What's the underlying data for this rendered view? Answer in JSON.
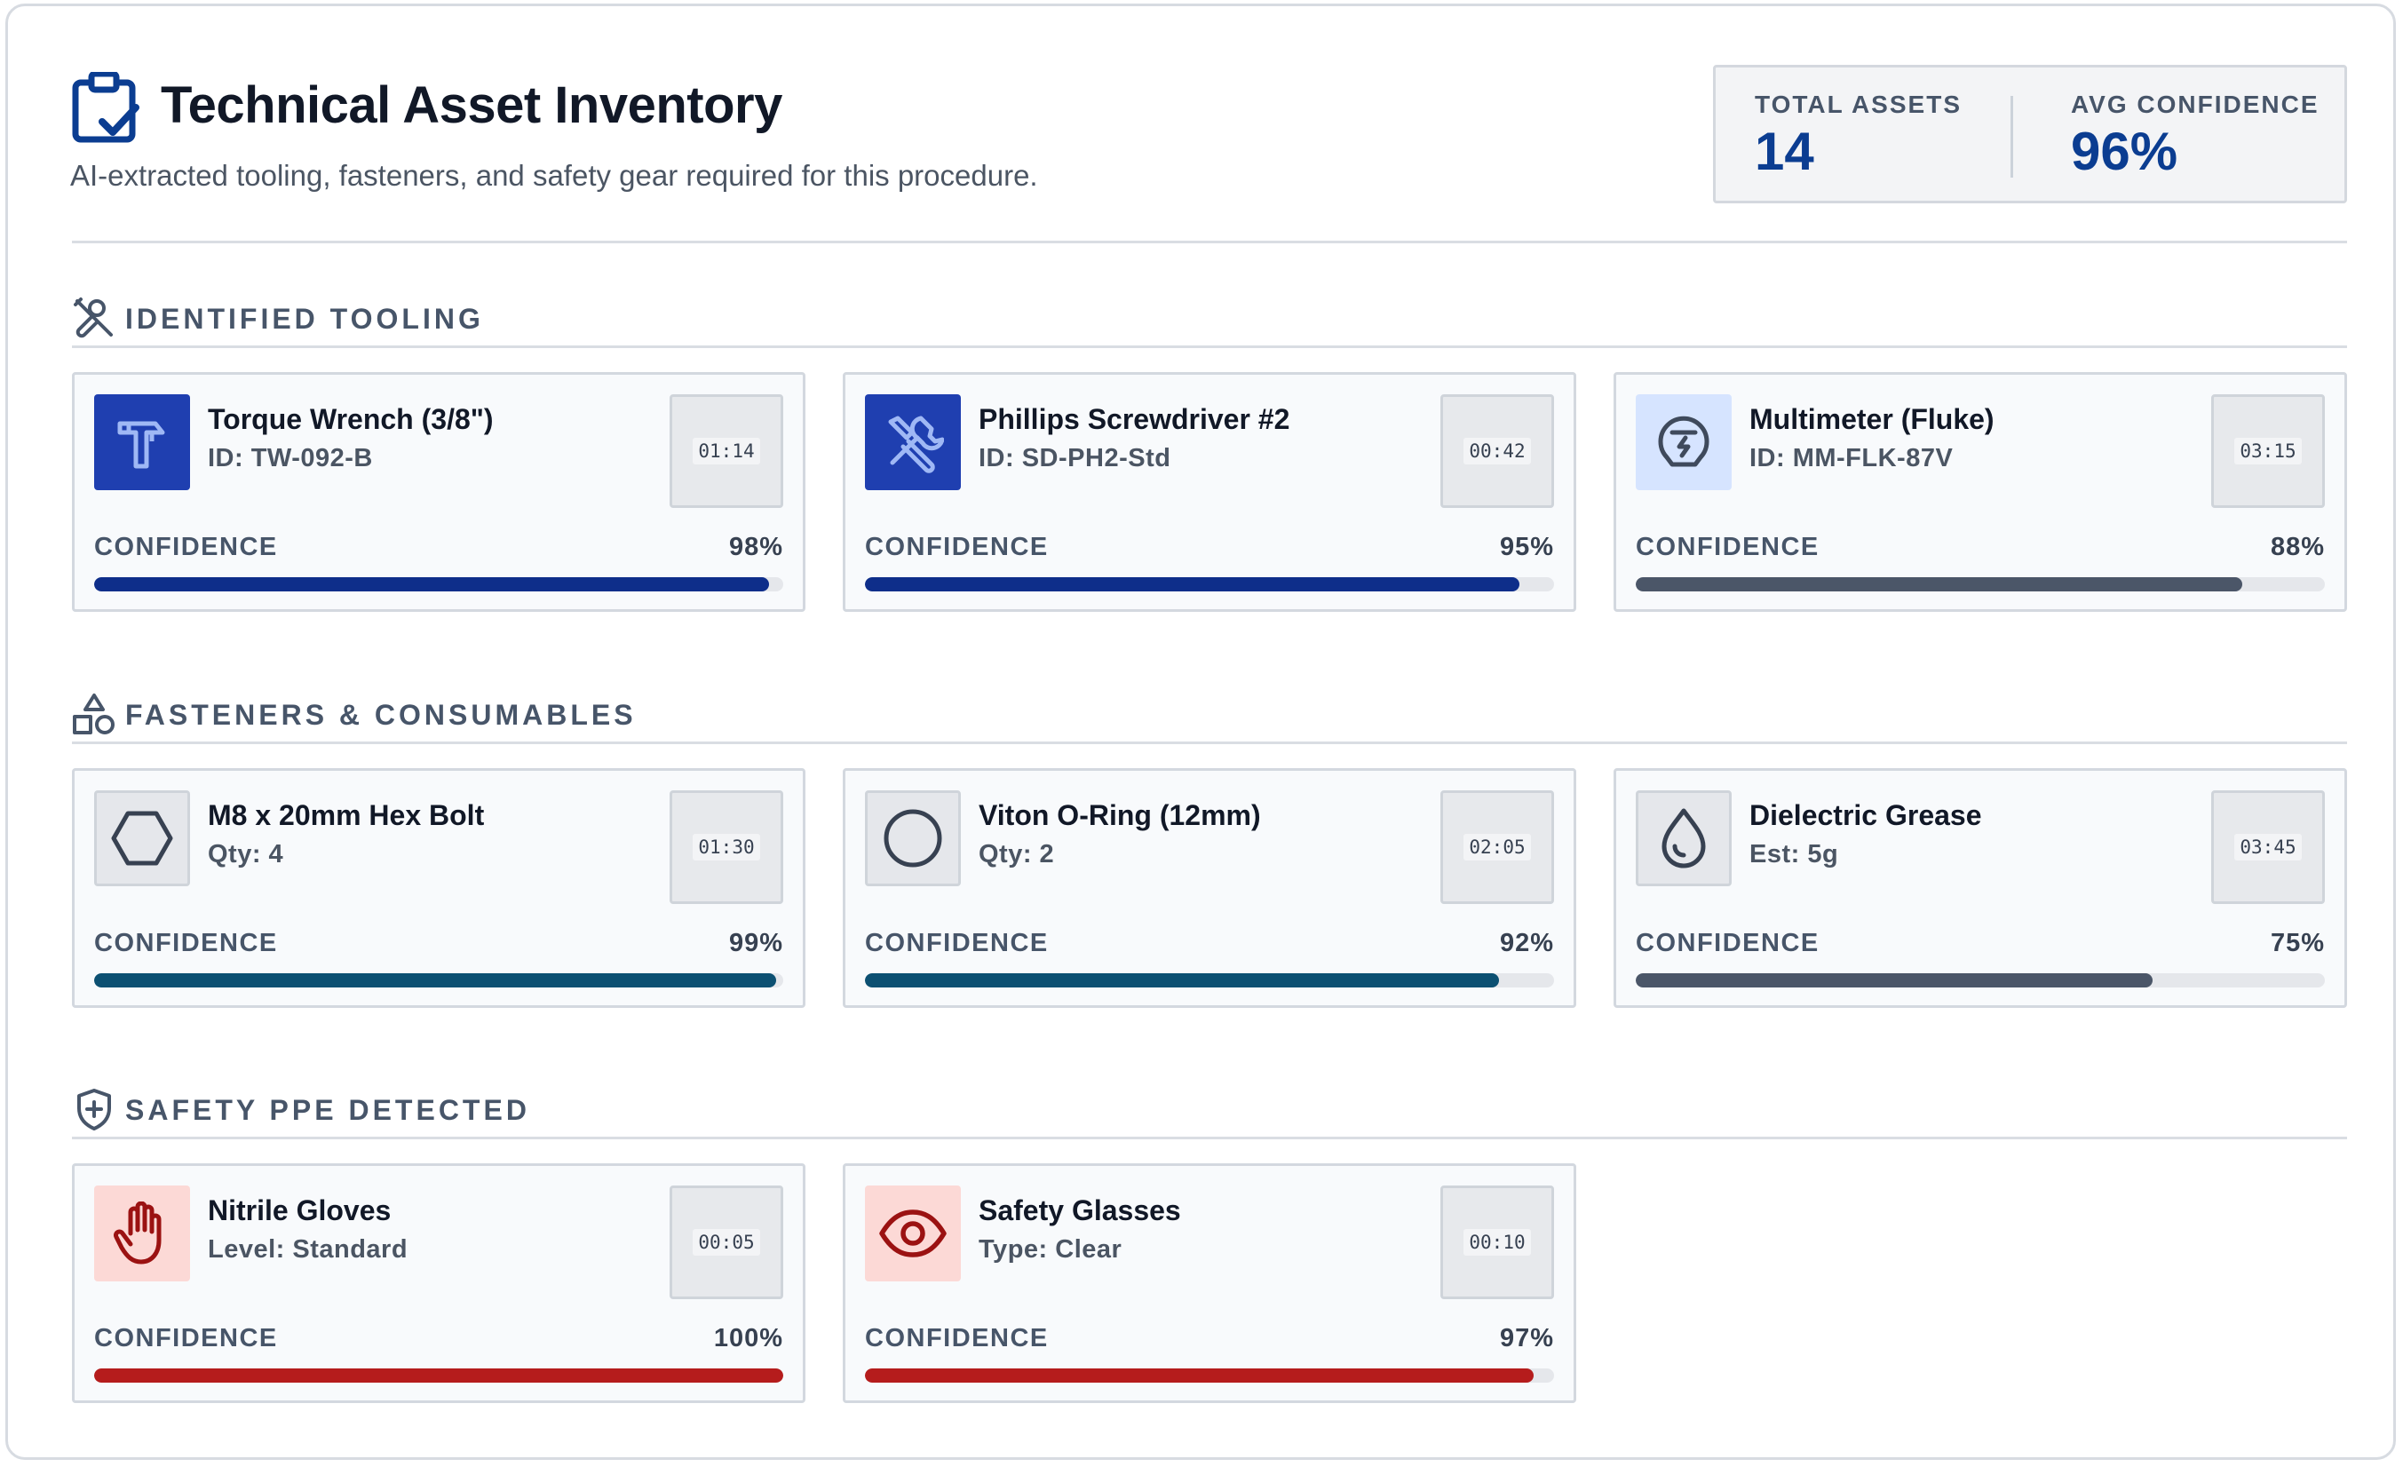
{
  "header": {
    "title": "Technical Asset Inventory",
    "subtitle": "AI-extracted tooling, fasteners, and safety gear required for this procedure.",
    "icon": "clipboard-check-icon"
  },
  "stats": [
    {
      "label": "TOTAL ASSETS",
      "value": "14"
    },
    {
      "label": "AVG CONFIDENCE",
      "value": "96%"
    }
  ],
  "colors": {
    "primary_blue": "#0b3d91",
    "bar_blue": "#0e2e8a",
    "bar_teal": "#0c5072",
    "bar_slate": "#4b5668",
    "bar_red": "#b51c1c"
  },
  "sections": [
    {
      "title": "IDENTIFIED TOOLING",
      "icon": "wrench-screwdriver-icon",
      "items": [
        {
          "name": "Torque Wrench (3/8\")",
          "meta": "ID: TW-092-B",
          "time": "01:14",
          "confidence_label": "CONFIDENCE",
          "confidence": "98%",
          "confidence_value": 0.98,
          "icon": "hammer-icon",
          "bar_color": "#0e2e8a",
          "thumb_bg": "#1f3fb0",
          "icon_color": "#9fb8f5"
        },
        {
          "name": "Phillips Screwdriver #2",
          "meta": "ID: SD-PH2-Std",
          "time": "00:42",
          "confidence_label": "CONFIDENCE",
          "confidence": "95%",
          "confidence_value": 0.95,
          "icon": "tools-icon",
          "bar_color": "#0e2e8a",
          "thumb_bg": "#1f3fb0",
          "icon_color": "#9fb8f5"
        },
        {
          "name": "Multimeter (Fluke)",
          "meta": "ID: MM-FLK-87V",
          "time": "03:15",
          "confidence_label": "CONFIDENCE",
          "confidence": "88%",
          "confidence_value": 0.88,
          "icon": "plug-meter-icon",
          "bar_color": "#4b5668",
          "thumb_bg": "#d6e4ff",
          "icon_color": "#3f4a5c"
        }
      ]
    },
    {
      "title": "FASTENERS & CONSUMABLES",
      "icon": "shapes-icon",
      "items": [
        {
          "name": "M8 x 20mm Hex Bolt",
          "meta": "Qty: 4",
          "time": "01:30",
          "confidence_label": "CONFIDENCE",
          "confidence": "99%",
          "confidence_value": 0.99,
          "icon": "hexagon-icon",
          "bar_color": "#0c5072",
          "thumb_bg": "#e5e7eb",
          "icon_color": "#374151"
        },
        {
          "name": "Viton O-Ring (12mm)",
          "meta": "Qty: 2",
          "time": "02:05",
          "confidence_label": "CONFIDENCE",
          "confidence": "92%",
          "confidence_value": 0.92,
          "icon": "circle-icon",
          "bar_color": "#0c5072",
          "thumb_bg": "#e5e7eb",
          "icon_color": "#374151"
        },
        {
          "name": "Dielectric Grease",
          "meta": "Est: 5g",
          "time": "03:45",
          "confidence_label": "CONFIDENCE",
          "confidence": "75%",
          "confidence_value": 0.75,
          "icon": "droplet-icon",
          "bar_color": "#4b5668",
          "thumb_bg": "#e5e7eb",
          "icon_color": "#374151"
        }
      ]
    },
    {
      "title": "SAFETY PPE DETECTED",
      "icon": "shield-plus-icon",
      "items": [
        {
          "name": "Nitrile Gloves",
          "meta": "Level: Standard",
          "time": "00:05",
          "confidence_label": "CONFIDENCE",
          "confidence": "100%",
          "confidence_value": 1.0,
          "icon": "hand-icon",
          "bar_color": "#b51c1c",
          "thumb_bg": "#fcd9d6",
          "icon_color": "#9b1212"
        },
        {
          "name": "Safety Glasses",
          "meta": "Type: Clear",
          "time": "00:10",
          "confidence_label": "CONFIDENCE",
          "confidence": "97%",
          "confidence_value": 0.97,
          "icon": "eye-icon",
          "bar_color": "#b51c1c",
          "thumb_bg": "#fcd9d6",
          "icon_color": "#9b1212"
        }
      ]
    }
  ]
}
